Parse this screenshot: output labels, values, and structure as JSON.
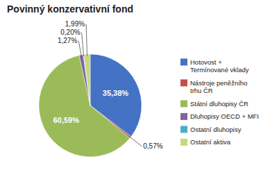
{
  "chart_data": {
    "type": "pie",
    "title": "Povinný konzervativní fond",
    "categories": [
      "Hotovost +\nTermínované vklady",
      "Nástroje peněžního\ntrhu ČR",
      "Státní dluhopisy ČR",
      "Dluhopisy OECD + MFI",
      "Ostatní dluhopisy",
      "Ostatní aktiva"
    ],
    "values": [
      35.38,
      0.57,
      60.59,
      1.27,
      0.2,
      1.99
    ],
    "value_labels": [
      "35,38%",
      "0,57%",
      "60,59%",
      "1,27%",
      "0,20%",
      "1,99%"
    ],
    "colors": [
      "#4472C4",
      "#C0504D",
      "#9BBB59",
      "#8064A2",
      "#4BACC6",
      "#C6D980"
    ],
    "data_labels": true,
    "legend": "right"
  }
}
